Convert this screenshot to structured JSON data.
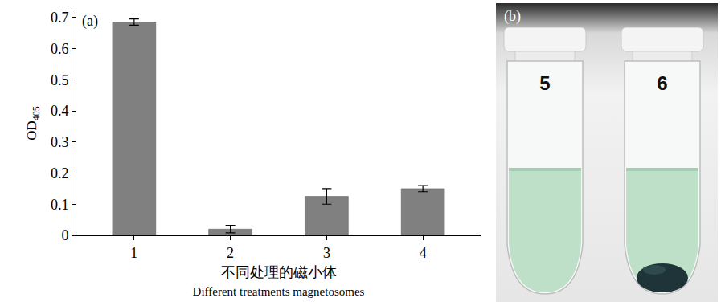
{
  "chart_data": {
    "type": "bar",
    "panel_label": "(a)",
    "xlabel": [
      "不同处理的磁小体",
      "Different treatments magnetosomes"
    ],
    "ylabel": {
      "text": "OD",
      "subscript": "405"
    },
    "categories": [
      "1",
      "2",
      "3",
      "4"
    ],
    "values": [
      0.685,
      0.02,
      0.125,
      0.15
    ],
    "errors": [
      0.01,
      0.012,
      0.025,
      0.01
    ],
    "color": "#808080",
    "ylim": [
      0,
      0.72
    ],
    "yticks": [
      0,
      0.1,
      0.2,
      0.3,
      0.4,
      0.5,
      0.6,
      0.7
    ],
    "grid": false
  },
  "photo": {
    "panel_label": "(b)",
    "tubes": [
      {
        "label": "5",
        "pellet": false
      },
      {
        "label": "6",
        "pellet": true
      }
    ]
  }
}
